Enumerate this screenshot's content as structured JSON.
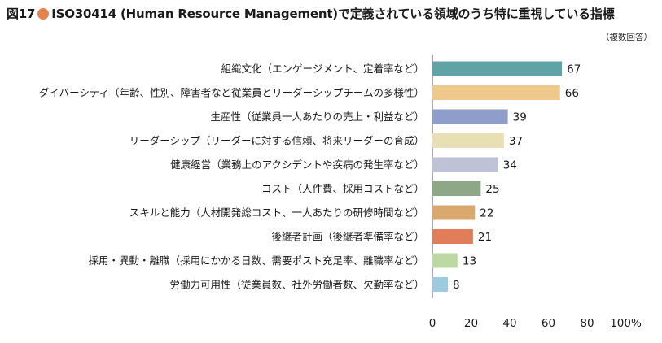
{
  "title": {
    "figure_label": "図17",
    "main": "ISO30414 (Human Resource Management)で定義されている領域のうち特に重視している指標"
  },
  "note": "（複数回答）",
  "colors": {
    "title_dot": "#e4834e"
  },
  "chart_data": {
    "type": "bar",
    "orientation": "horizontal",
    "categories": [
      "組織文化（エンゲージメント、定着率など）",
      "ダイバーシティ（年齢、性別、障害者など従業員とリーダーシップチームの多様性）",
      "生産性（従業員一人あたりの売上・利益など）",
      "リーダーシップ（リーダーに対する信頼、将来リーダーの育成）",
      "健康経営（業務上のアクシデントや疾病の発生率など）",
      "コスト（人件費、採用コストなど）",
      "スキルと能力（人材開発総コスト、一人あたりの研修時間など）",
      "後継者計画（後継者準備率など）",
      "採用・異動・離職（採用にかかる日数、需要ポスト充足率、離職率など）",
      "労働力可用性（従業員数、社外労働者数、欠勤率など）"
    ],
    "values": [
      67,
      66,
      39,
      37,
      34,
      25,
      22,
      21,
      13,
      8
    ],
    "value_labels": [
      "67",
      "66",
      "39",
      "37",
      "34",
      "25",
      "22",
      "21",
      "13",
      "8"
    ],
    "colors": [
      "#5fa3a6",
      "#efc98c",
      "#8e9dc9",
      "#e8dfb5",
      "#bfc2d6",
      "#8ea887",
      "#d9a86e",
      "#e17d58",
      "#bcd9a3",
      "#9ccbe0"
    ],
    "xlim": [
      0,
      100
    ],
    "xticks": [
      "0",
      "20",
      "40",
      "60",
      "80",
      "100%"
    ],
    "xticks_values": [
      0,
      20,
      40,
      60,
      80,
      100
    ],
    "grid": false,
    "legend": "none"
  }
}
